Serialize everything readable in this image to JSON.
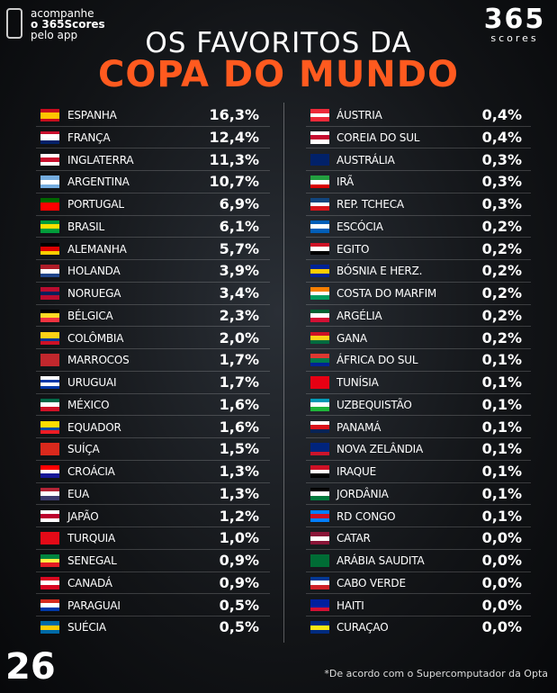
{
  "promo": [
    "acompanhe",
    "o 365Scores",
    "pelo app"
  ],
  "logo": {
    "number": "365",
    "text": "scores"
  },
  "title": {
    "line1": "OS FAVORITOS DA",
    "line2": "COPA DO MUNDO"
  },
  "columns": [
    [
      [
        "ESPANHA",
        "16,3%"
      ],
      [
        "FRANÇA",
        "12,4%"
      ],
      [
        "INGLATERRA",
        "11,3%"
      ],
      [
        "ARGENTINA",
        "10,7%"
      ],
      [
        "PORTUGAL",
        "6,9%"
      ],
      [
        "BRASIL",
        "6,1%"
      ],
      [
        "ALEMANHA",
        "5,7%"
      ],
      [
        "HOLANDA",
        "3,9%"
      ],
      [
        "NORUEGA",
        "3,4%"
      ],
      [
        "BÉLGICA",
        "2,3%"
      ],
      [
        "COLÔMBIA",
        "2,0%"
      ],
      [
        "MARROCOS",
        "1,7%"
      ],
      [
        "URUGUAI",
        "1,7%"
      ],
      [
        "MÉXICO",
        "1,6%"
      ],
      [
        "EQUADOR",
        "1,6%"
      ],
      [
        "SUÍÇA",
        "1,5%"
      ],
      [
        "CROÁCIA",
        "1,3%"
      ],
      [
        "EUA",
        "1,3%"
      ],
      [
        "JAPÃO",
        "1,2%"
      ],
      [
        "TURQUIA",
        "1,0%"
      ],
      [
        "SENEGAL",
        "0,9%"
      ],
      [
        "CANADÁ",
        "0,9%"
      ],
      [
        "PARAGUAI",
        "0,5%"
      ],
      [
        "SUÉCIA",
        "0,5%"
      ]
    ],
    [
      [
        "ÁUSTRIA",
        "0,4%"
      ],
      [
        "COREIA DO SUL",
        "0,4%"
      ],
      [
        "AUSTRÁLIA",
        "0,3%"
      ],
      [
        "IRÃ",
        "0,3%"
      ],
      [
        "REP. TCHECA",
        "0,3%"
      ],
      [
        "ESCÓCIA",
        "0,2%"
      ],
      [
        "EGITO",
        "0,2%"
      ],
      [
        "BÓSNIA E HERZ.",
        "0,2%"
      ],
      [
        "COSTA DO MARFIM",
        "0,2%"
      ],
      [
        "ARGÉLIA",
        "0,2%"
      ],
      [
        "GANA",
        "0,2%"
      ],
      [
        "ÁFRICA DO SUL",
        "0,1%"
      ],
      [
        "TUNÍSIA",
        "0,1%"
      ],
      [
        "UZBEQUISTÃO",
        "0,1%"
      ],
      [
        "PANAMÁ",
        "0,1%"
      ],
      [
        "NOVA ZELÂNDIA",
        "0,1%"
      ],
      [
        "IRAQUE",
        "0,1%"
      ],
      [
        "JORDÂNIA",
        "0,1%"
      ],
      [
        "RD CONGO",
        "0,1%"
      ],
      [
        "CATAR",
        "0,0%"
      ],
      [
        "ARÁBIA SAUDITA",
        "0,0%"
      ],
      [
        "CABO VERDE",
        "0,0%"
      ],
      [
        "HAITI",
        "0,0%"
      ],
      [
        "CURAÇAO",
        "0,0%"
      ]
    ]
  ],
  "cup_logo": "26",
  "footnote": "*De acordo com o Supercomputador da Opta"
}
